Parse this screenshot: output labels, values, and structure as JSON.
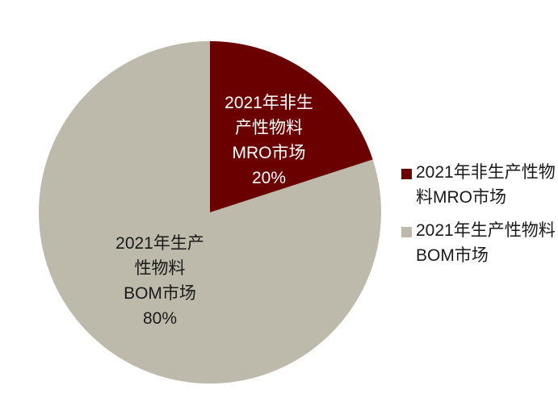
{
  "chart_data": {
    "type": "pie",
    "title": "",
    "series": [
      {
        "name": "2021年非生产性物料MRO市场",
        "value": 20,
        "color": "#6B0000",
        "label_lines": [
          "2021年非生",
          "产性物料",
          "MRO市场",
          "20%"
        ]
      },
      {
        "name": "2021年生产性物料BOM市场",
        "value": 80,
        "color": "#BDB9AB",
        "label_lines": [
          "2021年生产",
          "性物料",
          "BOM市场",
          "80%"
        ]
      }
    ],
    "legend_position": "right",
    "start_angle_deg": 0,
    "direction": "clockwise"
  },
  "legend": {
    "items": [
      {
        "text": "2021年非生产性物料MRO市场",
        "color": "#6B0000"
      },
      {
        "text": "2021年生产性物料BOM市场",
        "color": "#BDB9AB"
      }
    ]
  }
}
